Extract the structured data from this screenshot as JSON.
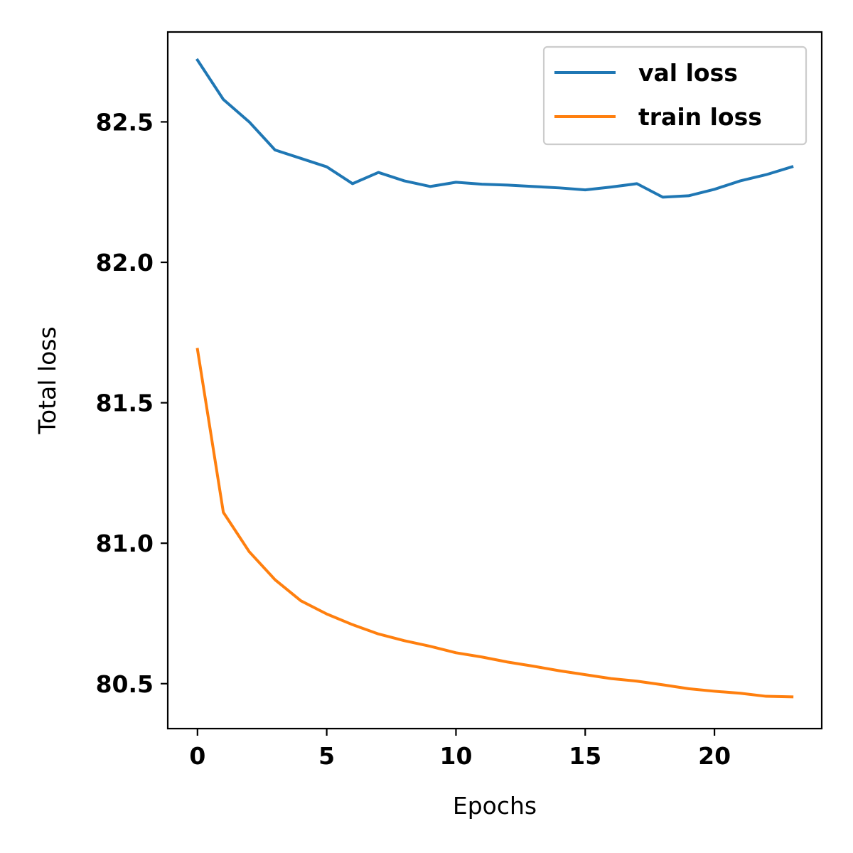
{
  "chart_data": {
    "type": "line",
    "title": "",
    "xlabel": "Epochs",
    "ylabel": "Total loss",
    "xlim": [
      -1.15,
      24.15
    ],
    "ylim": [
      80.34,
      82.82
    ],
    "xticks": [
      0,
      5,
      10,
      15,
      20
    ],
    "xtick_labels": [
      "0",
      "5",
      "10",
      "15",
      "20"
    ],
    "yticks": [
      80.5,
      81.0,
      81.5,
      82.0,
      82.5
    ],
    "ytick_labels": [
      "80.5",
      "81.0",
      "81.5",
      "82.0",
      "82.5"
    ],
    "grid": false,
    "legend_position": "top-right",
    "x": [
      0,
      1,
      2,
      3,
      4,
      5,
      6,
      7,
      8,
      9,
      10,
      11,
      12,
      13,
      14,
      15,
      16,
      17,
      18,
      19,
      20,
      21,
      22,
      23
    ],
    "series": [
      {
        "name": "val loss",
        "color": "#1f77b4",
        "values": [
          82.72,
          82.58,
          82.5,
          82.4,
          82.37,
          82.34,
          82.28,
          82.32,
          82.29,
          82.27,
          82.285,
          82.278,
          82.275,
          82.27,
          82.265,
          82.258,
          82.268,
          82.28,
          82.232,
          82.237,
          82.26,
          82.29,
          82.312,
          82.34
        ]
      },
      {
        "name": "train loss",
        "color": "#ff7f0e",
        "values": [
          81.69,
          81.11,
          80.97,
          80.87,
          80.795,
          80.748,
          80.71,
          80.677,
          80.653,
          80.633,
          80.61,
          80.595,
          80.577,
          80.562,
          80.546,
          80.532,
          80.518,
          80.509,
          80.496,
          80.482,
          80.473,
          80.466,
          80.455,
          80.453
        ]
      }
    ]
  }
}
